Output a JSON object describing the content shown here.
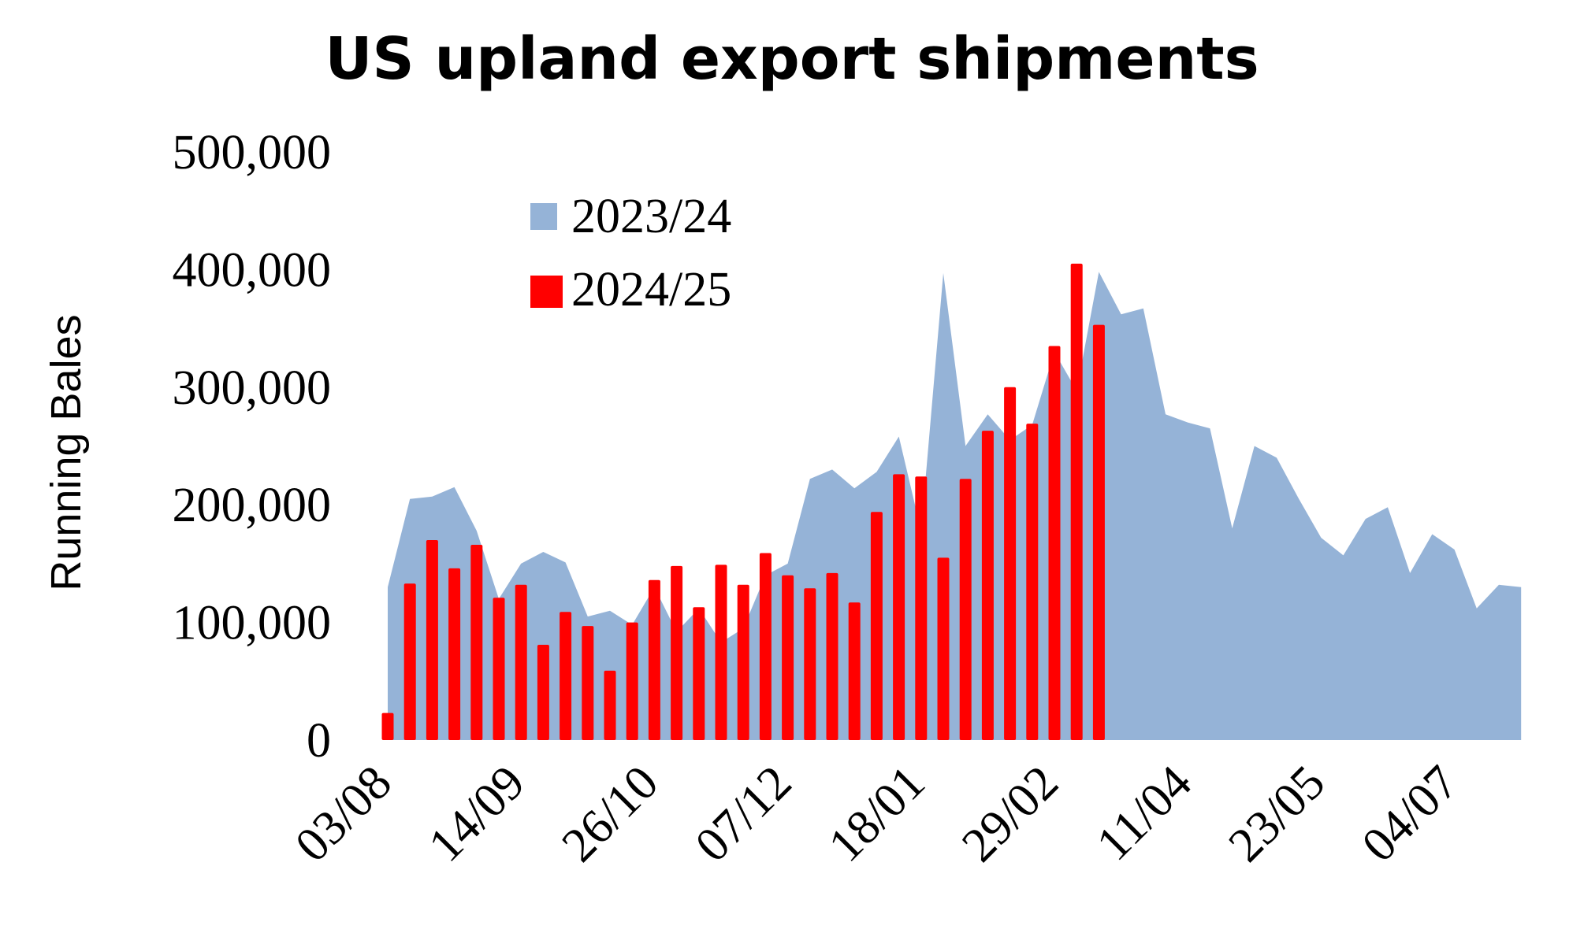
{
  "chart_data": {
    "type": "bar",
    "title": "US upland export shipments",
    "ylabel": "Running Bales",
    "xlabel": "",
    "ylim": [
      0,
      500000
    ],
    "yticks": [
      0,
      100000,
      200000,
      300000,
      400000,
      500000
    ],
    "ytick_labels": [
      "0",
      "100,000",
      "200,000",
      "300,000",
      "400,000",
      "500,000"
    ],
    "x_tick_labels": [
      "03/08",
      "14/09",
      "26/10",
      "07/12",
      "18/01",
      "29/02",
      "11/04",
      "23/05",
      "04/07"
    ],
    "x_tick_every": 6,
    "legend": {
      "placement": "top-left"
    },
    "series": [
      {
        "name": "2023/24",
        "type": "area",
        "color": "#95b3d7",
        "values": [
          130000,
          205000,
          207000,
          215000,
          178000,
          120000,
          150000,
          160000,
          151000,
          105000,
          110000,
          98000,
          130000,
          92000,
          112000,
          83000,
          95000,
          140000,
          150000,
          222000,
          230000,
          214000,
          228000,
          258000,
          178000,
          397000,
          250000,
          277000,
          255000,
          268000,
          330000,
          297000,
          398000,
          362000,
          367000,
          277000,
          270000,
          265000,
          180000,
          250000,
          240000,
          205000,
          172000,
          157000,
          188000,
          198000,
          142000,
          175000,
          162000,
          112000,
          132000,
          130000
        ]
      },
      {
        "name": "2024/25",
        "type": "bar",
        "color": "#ff0000",
        "values": [
          23000,
          133000,
          170000,
          146000,
          166000,
          121000,
          132000,
          81000,
          109000,
          97000,
          59000,
          100000,
          136000,
          148000,
          113000,
          149000,
          132000,
          159000,
          140000,
          129000,
          142000,
          117000,
          194000,
          226000,
          224000,
          155000,
          222000,
          263000,
          300000,
          269000,
          335000,
          405000,
          353000
        ]
      }
    ]
  }
}
